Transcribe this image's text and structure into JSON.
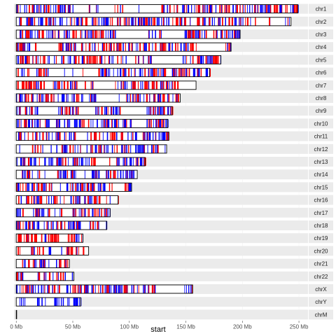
{
  "chart_data": {
    "type": "karyogram",
    "xlabel": "start",
    "x_ticks": [
      {
        "value": 0,
        "label": "0 Mb"
      },
      {
        "value": 50,
        "label": "50 Mb"
      },
      {
        "value": 100,
        "label": "100 Mb"
      },
      {
        "value": 150,
        "label": "150 Mb"
      },
      {
        "value": 200,
        "label": "200 Mb"
      },
      {
        "value": 250,
        "label": "250 Mb"
      }
    ],
    "xlim": [
      -2,
      258
    ],
    "x_unit": "Mb",
    "colors": {
      "band_red": "#ff0000",
      "band_blue": "#0000ff",
      "outline": "#000000",
      "strip_bg": "#ebebeb",
      "panel_bg": "#ffffff"
    },
    "chromosomes": [
      {
        "name": "chr1",
        "length": 249.0,
        "red_frac": 0.45
      },
      {
        "name": "chr2",
        "length": 243.0,
        "red_frac": 0.45
      },
      {
        "name": "chr3",
        "length": 198.0,
        "red_frac": 0.35
      },
      {
        "name": "chr4",
        "length": 190.0,
        "red_frac": 0.6
      },
      {
        "name": "chr5",
        "length": 181.0,
        "red_frac": 0.5
      },
      {
        "name": "chr6",
        "length": 171.0,
        "red_frac": 0.3
      },
      {
        "name": "chr7",
        "length": 159.0,
        "red_frac": 0.55
      },
      {
        "name": "chr8",
        "length": 145.0,
        "red_frac": 0.4
      },
      {
        "name": "chr9",
        "length": 138.0,
        "red_frac": 0.45
      },
      {
        "name": "chr10",
        "length": 134.0,
        "red_frac": 0.3
      },
      {
        "name": "chr11",
        "length": 135.0,
        "red_frac": 0.35
      },
      {
        "name": "chr12",
        "length": 133.0,
        "red_frac": 0.3
      },
      {
        "name": "chr13",
        "length": 114.0,
        "red_frac": 0.3
      },
      {
        "name": "chr14",
        "length": 107.0,
        "red_frac": 0.35
      },
      {
        "name": "chr15",
        "length": 102.0,
        "red_frac": 0.35
      },
      {
        "name": "chr16",
        "length": 90.0,
        "red_frac": 0.55
      },
      {
        "name": "chr17",
        "length": 83.0,
        "red_frac": 0.6
      },
      {
        "name": "chr18",
        "length": 80.0,
        "red_frac": 0.35
      },
      {
        "name": "chr19",
        "length": 59.0,
        "red_frac": 0.85
      },
      {
        "name": "chr20",
        "length": 64.0,
        "red_frac": 0.5
      },
      {
        "name": "chr21",
        "length": 47.0,
        "red_frac": 0.5
      },
      {
        "name": "chr22",
        "length": 51.0,
        "red_frac": 0.4
      },
      {
        "name": "chrX",
        "length": 156.0,
        "red_frac": 0.35
      },
      {
        "name": "chrY",
        "length": 57.0,
        "red_frac": 0.0
      },
      {
        "name": "chrM",
        "length": 0.2,
        "red_frac": 0.0
      }
    ]
  }
}
